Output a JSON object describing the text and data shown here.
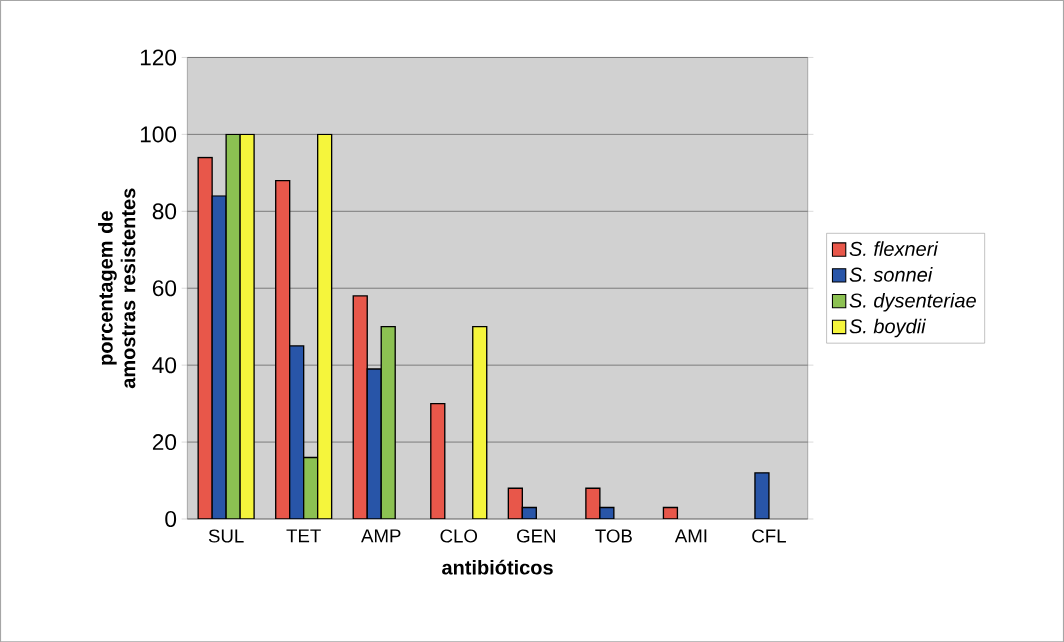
{
  "chart_data": {
    "type": "bar",
    "xlabel": "antibióticos",
    "ylabel": "porcentagem de amostras resistentes",
    "categories": [
      "SUL",
      "TET",
      "AMP",
      "CLO",
      "GEN",
      "TOB",
      "AMI",
      "CFL"
    ],
    "series": [
      {
        "name": "S. flexneri",
        "color": "#e8574a",
        "values": [
          94,
          88,
          58,
          30,
          8,
          8,
          3,
          null
        ]
      },
      {
        "name": "S. sonnei",
        "color": "#2855a8",
        "values": [
          84,
          45,
          39,
          null,
          3,
          3,
          null,
          12
        ]
      },
      {
        "name": "S. dysenteriae",
        "color": "#8cc152",
        "values": [
          100,
          16,
          50,
          null,
          null,
          null,
          null,
          null
        ]
      },
      {
        "name": "S. boydii",
        "color": "#f5f53c",
        "values": [
          100,
          100,
          null,
          50,
          null,
          null,
          null,
          null
        ]
      }
    ],
    "ylim": [
      0,
      120
    ],
    "yticks": [
      0,
      20,
      40,
      60,
      80,
      100,
      120
    ],
    "grid": "y",
    "legend": "right"
  }
}
